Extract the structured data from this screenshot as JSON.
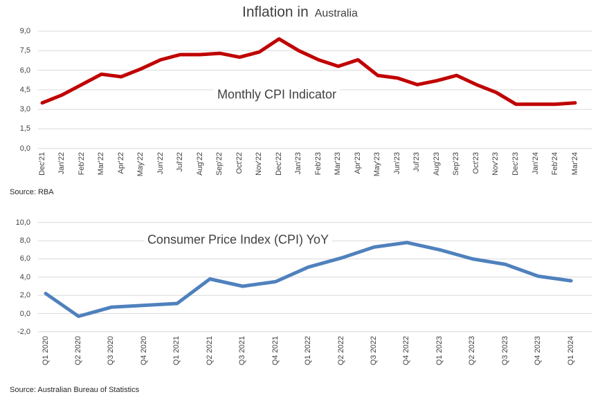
{
  "title": {
    "main": "Inflation in",
    "suffix": "Australia"
  },
  "chart_data": [
    {
      "type": "line",
      "title": "Inflation in Australia",
      "series_label": "Monthly CPI Indicator",
      "source": "Source: RBA",
      "line_color": "#C00000",
      "grid": true,
      "legend": "none",
      "ylim": [
        0,
        9
      ],
      "y_tick_labels": [
        "9,0",
        "7,5",
        "6,0",
        "4,5",
        "3,0",
        "1,5",
        "0,0"
      ],
      "y_tick_values": [
        9,
        7.5,
        6,
        4.5,
        3,
        1.5,
        0
      ],
      "categories": [
        "Dec'21",
        "Jan'22",
        "Feb'22",
        "Mar'22",
        "Apr'22",
        "May'22",
        "Jun'22",
        "Jul'22",
        "Aug'22",
        "Sep'22",
        "Oct'22",
        "Nov'22",
        "Dec'22",
        "Jan'23",
        "Feb'23",
        "Mar'23",
        "Apr'23",
        "May'23",
        "Jun'23",
        "Jul'23",
        "Aug'23",
        "Sep'23",
        "Oct'23",
        "Nov'23",
        "Dec'23",
        "Jan'24",
        "Feb'24",
        "Mar'24"
      ],
      "values": [
        3.5,
        4.1,
        4.9,
        5.7,
        5.5,
        6.1,
        6.8,
        7.2,
        7.2,
        7.3,
        7.0,
        7.4,
        8.4,
        7.5,
        6.8,
        6.3,
        6.8,
        5.6,
        5.4,
        4.9,
        5.2,
        5.6,
        4.9,
        4.3,
        3.4,
        3.4,
        3.4,
        3.5
      ]
    },
    {
      "type": "line",
      "title": "Consumer Price Index (CPI) YoY",
      "series_label": "Consumer Price Index (CPI) YoY",
      "source": "Source: Australian Bureau of Statistics",
      "line_color": "#4F81BD",
      "grid": true,
      "legend": "none",
      "ylim": [
        -2,
        10
      ],
      "y_tick_labels": [
        "10,0",
        "8,0",
        "6,0",
        "4,0",
        "2,0",
        "0,0",
        "-2,0"
      ],
      "y_tick_values": [
        10,
        8,
        6,
        4,
        2,
        0,
        -2
      ],
      "categories": [
        "Q1 2020",
        "Q2 2020",
        "Q3 2020",
        "Q4 2020",
        "Q1 2021",
        "Q2 2021",
        "Q3 2021",
        "Q4 2021",
        "Q1 2022",
        "Q2 2022",
        "Q3 2022",
        "Q4 2022",
        "Q1 2023",
        "Q2 2023",
        "Q3 2023",
        "Q4 2023",
        "Q1 2024"
      ],
      "values": [
        2.2,
        -0.3,
        0.7,
        0.9,
        1.1,
        3.8,
        3.0,
        3.5,
        5.1,
        6.1,
        7.3,
        7.8,
        7.0,
        6.0,
        5.4,
        4.1,
        3.6
      ]
    }
  ],
  "colors": {
    "gridline": "#D9D9D9",
    "text": "#404040"
  }
}
